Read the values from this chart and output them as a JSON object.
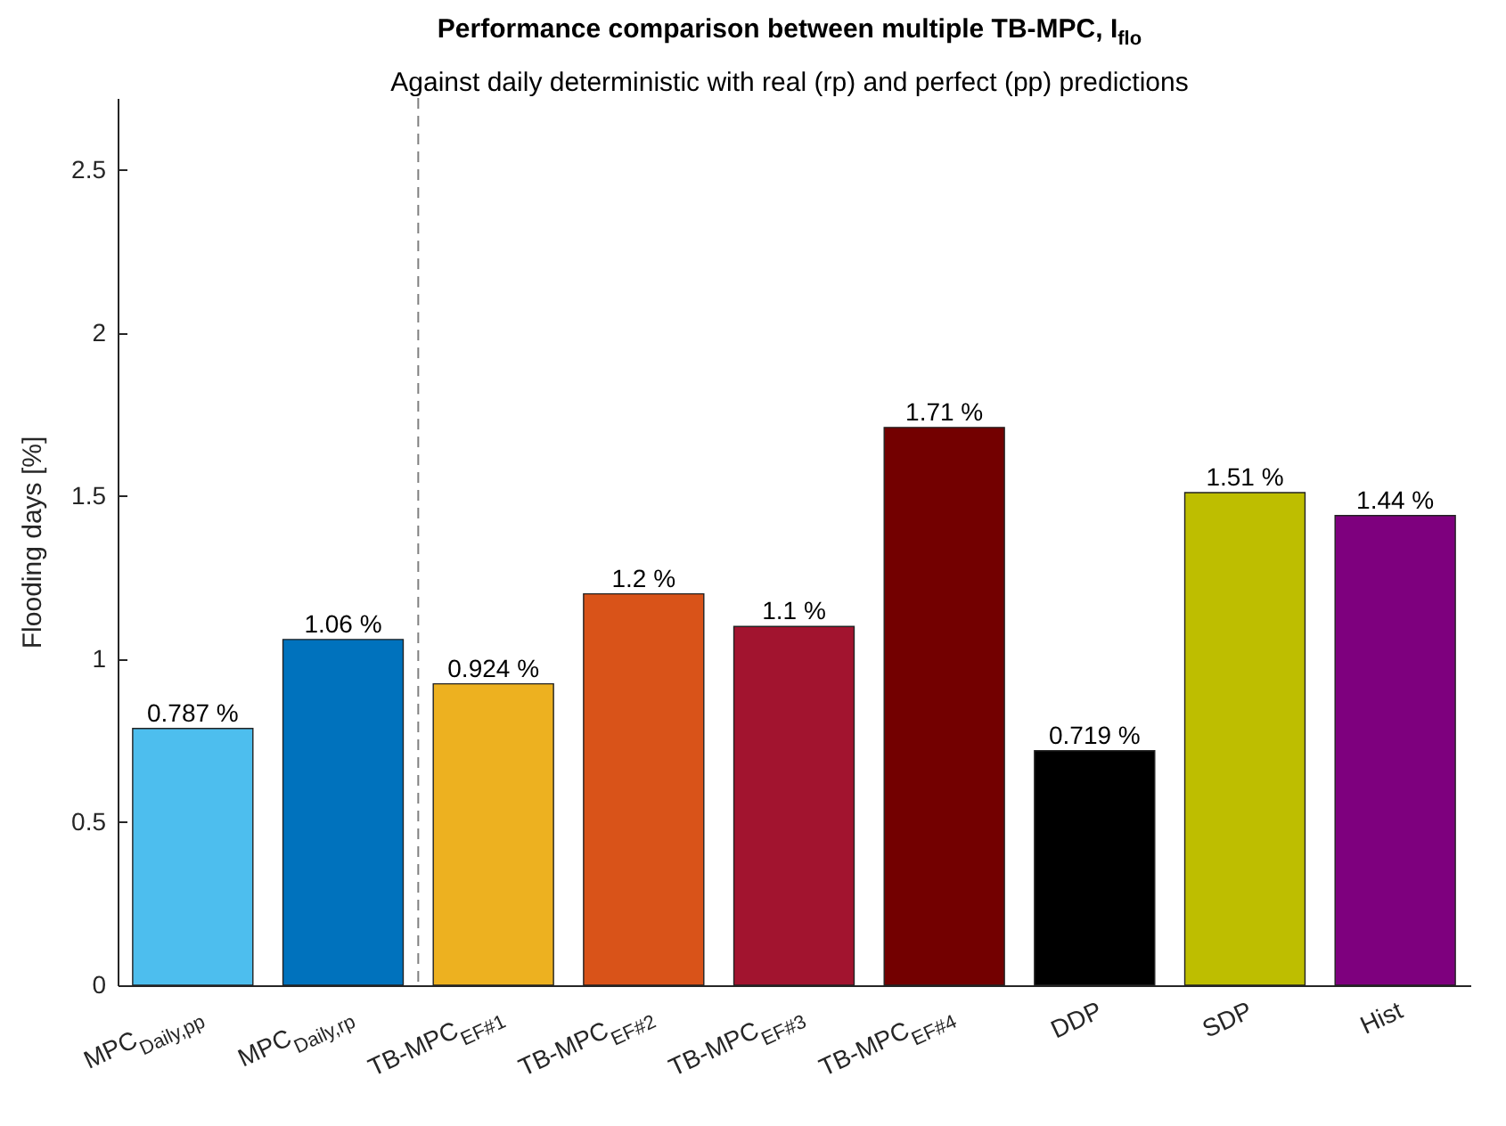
{
  "chart_data": {
    "type": "bar",
    "title": "Performance comparison between multiple TB-MPC, I$_{flo}$",
    "subtitle": "Against daily deterministic with real (rp) and perfect (pp) predictions",
    "ylabel": "Flooding days [%]",
    "categories": [
      "MPC$_{Daily,pp}$",
      "MPC$_{Daily,rp}$",
      "TB-MPC$_{EF#1}$",
      "TB-MPC$_{EF#2}$",
      "TB-MPC$_{EF#3}$",
      "TB-MPC$_{EF#4}$",
      "DDP",
      "SDP",
      "Hist"
    ],
    "values": [
      0.787,
      1.06,
      0.924,
      1.2,
      1.1,
      1.71,
      0.719,
      1.51,
      1.44
    ],
    "colors": [
      "#4dbeee",
      "#0072bd",
      "#edb120",
      "#d95319",
      "#a2142f",
      "#730000",
      "#000000",
      "#bebe00",
      "#7e007e"
    ],
    "value_labels": [
      "0.787 %",
      "1.06 %",
      "0.924 %",
      "1.2 %",
      "1.1 %",
      "1.71 %",
      "0.719 %",
      "1.51 %",
      "1.44 %"
    ],
    "ylim": [
      0,
      2.72
    ],
    "yticks": [
      0,
      0.5,
      1,
      1.5,
      2,
      2.5
    ],
    "grid": false
  }
}
